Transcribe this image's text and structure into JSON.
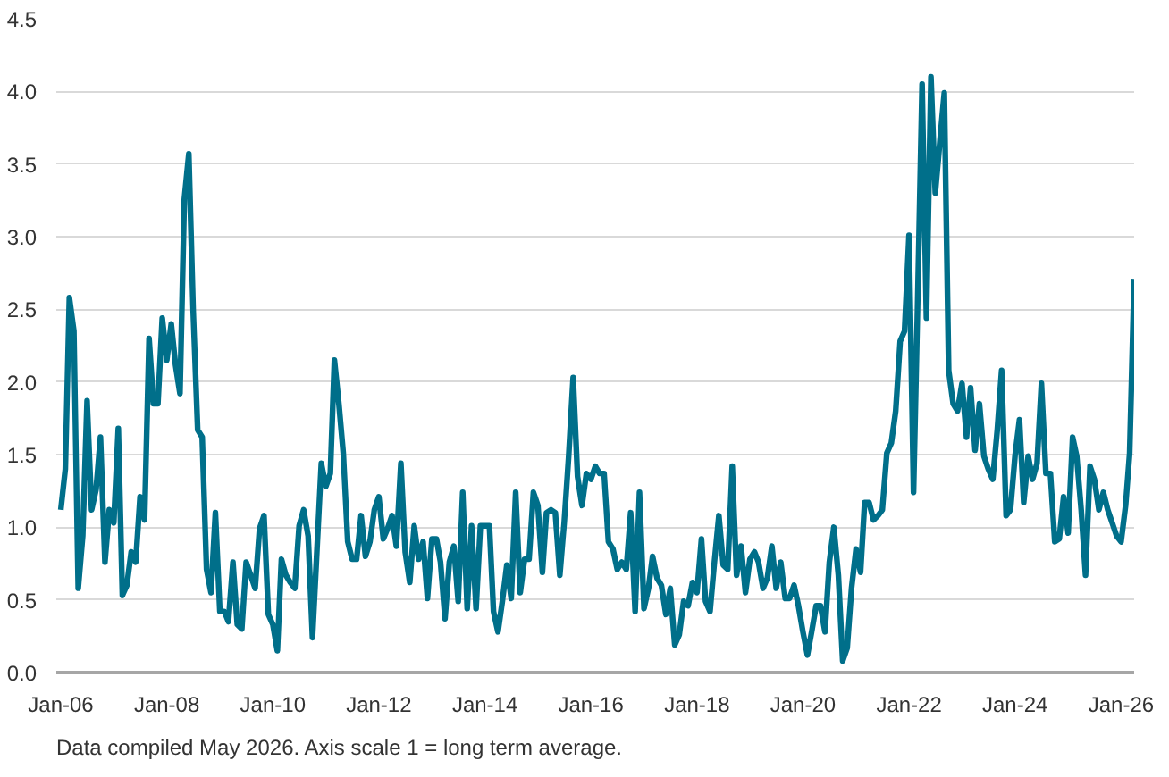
{
  "chart_data": {
    "type": "line",
    "x": [
      "2006-01",
      "2006-02",
      "2006-03",
      "2006-04",
      "2006-05",
      "2006-06",
      "2006-07",
      "2006-08",
      "2006-09",
      "2006-10",
      "2006-11",
      "2006-12",
      "2007-01",
      "2007-02",
      "2007-03",
      "2007-04",
      "2007-05",
      "2007-06",
      "2007-07",
      "2007-08",
      "2007-09",
      "2007-10",
      "2007-11",
      "2007-12",
      "2008-01",
      "2008-02",
      "2008-03",
      "2008-04",
      "2008-05",
      "2008-06",
      "2008-07",
      "2008-08",
      "2008-09",
      "2008-10",
      "2008-11",
      "2008-12",
      "2009-01",
      "2009-02",
      "2009-03",
      "2009-04",
      "2009-05",
      "2009-06",
      "2009-07",
      "2009-08",
      "2009-09",
      "2009-10",
      "2009-11",
      "2009-12",
      "2010-01",
      "2010-02",
      "2010-03",
      "2010-04",
      "2010-05",
      "2010-06",
      "2010-07",
      "2010-08",
      "2010-09",
      "2010-10",
      "2010-11",
      "2010-12",
      "2011-01",
      "2011-02",
      "2011-03",
      "2011-04",
      "2011-05",
      "2011-06",
      "2011-07",
      "2011-08",
      "2011-09",
      "2011-10",
      "2011-11",
      "2011-12",
      "2012-01",
      "2012-02",
      "2012-03",
      "2012-04",
      "2012-05",
      "2012-06",
      "2012-07",
      "2012-08",
      "2012-09",
      "2012-10",
      "2012-11",
      "2012-12",
      "2013-01",
      "2013-02",
      "2013-03",
      "2013-04",
      "2013-05",
      "2013-06",
      "2013-07",
      "2013-08",
      "2013-09",
      "2013-10",
      "2013-11",
      "2013-12",
      "2014-01",
      "2014-02",
      "2014-03",
      "2014-04",
      "2014-05",
      "2014-06",
      "2014-07",
      "2014-08",
      "2014-09",
      "2014-10",
      "2014-11",
      "2014-12",
      "2015-01",
      "2015-02",
      "2015-03",
      "2015-04",
      "2015-05",
      "2015-06",
      "2015-07",
      "2015-08",
      "2015-09",
      "2015-10",
      "2015-11",
      "2015-12",
      "2016-01",
      "2016-02",
      "2016-03",
      "2016-04",
      "2016-05",
      "2016-06",
      "2016-07",
      "2016-08",
      "2016-09",
      "2016-10",
      "2016-11",
      "2016-12",
      "2017-01",
      "2017-02",
      "2017-03",
      "2017-04",
      "2017-05",
      "2017-06",
      "2017-07",
      "2017-08",
      "2017-09",
      "2017-10",
      "2017-11",
      "2017-12",
      "2018-01",
      "2018-02",
      "2018-03",
      "2018-04",
      "2018-05",
      "2018-06",
      "2018-07",
      "2018-08",
      "2018-09",
      "2018-10",
      "2018-11",
      "2018-12",
      "2019-01",
      "2019-02",
      "2019-03",
      "2019-04",
      "2019-05",
      "2019-06",
      "2019-07",
      "2019-08",
      "2019-09",
      "2019-10",
      "2019-11",
      "2019-12",
      "2020-01",
      "2020-02",
      "2020-03",
      "2020-04",
      "2020-05",
      "2020-06",
      "2020-07",
      "2020-08",
      "2020-09",
      "2020-10",
      "2020-11",
      "2020-12",
      "2021-01",
      "2021-02",
      "2021-03",
      "2021-04",
      "2021-05",
      "2021-06",
      "2021-07",
      "2021-08",
      "2021-09",
      "2021-10",
      "2021-11",
      "2021-12",
      "2022-01",
      "2022-02",
      "2022-03",
      "2022-04",
      "2022-05",
      "2022-06",
      "2022-07",
      "2022-08",
      "2022-09",
      "2022-10",
      "2022-11",
      "2022-12",
      "2023-01",
      "2023-02",
      "2023-03",
      "2023-04",
      "2023-05",
      "2023-06",
      "2023-07",
      "2023-08",
      "2023-09",
      "2023-10",
      "2023-11",
      "2023-12",
      "2024-01",
      "2024-02",
      "2024-03",
      "2024-04",
      "2024-05",
      "2024-06",
      "2024-07",
      "2024-08",
      "2024-09",
      "2024-10",
      "2024-11",
      "2024-12",
      "2025-01",
      "2025-02",
      "2025-03",
      "2025-04",
      "2025-05",
      "2025-06",
      "2025-07",
      "2025-08",
      "2025-09",
      "2025-10",
      "2025-11",
      "2025-12",
      "2026-01",
      "2026-02",
      "2026-03",
      "2026-04"
    ],
    "series": [
      {
        "color": "#006f8a",
        "values": [
          1.12,
          1.4,
          2.58,
          2.35,
          0.58,
          0.94,
          1.87,
          1.12,
          1.26,
          1.62,
          0.76,
          1.12,
          1.03,
          1.68,
          0.53,
          0.6,
          0.83,
          0.76,
          1.21,
          1.05,
          2.3,
          1.85,
          1.85,
          2.44,
          2.15,
          2.4,
          2.12,
          1.92,
          3.26,
          3.57,
          2.49,
          1.67,
          1.62,
          0.71,
          0.55,
          1.1,
          0.42,
          0.42,
          0.35,
          0.76,
          0.33,
          0.3,
          0.76,
          0.67,
          0.58,
          0.99,
          1.08,
          0.4,
          0.33,
          0.15,
          0.78,
          0.67,
          0.62,
          0.58,
          1.01,
          1.12,
          0.94,
          0.24,
          0.85,
          1.44,
          1.28,
          1.37,
          2.15,
          1.85,
          1.51,
          0.9,
          0.78,
          0.78,
          1.08,
          0.8,
          0.9,
          1.12,
          1.21,
          0.92,
          0.99,
          1.08,
          0.87,
          1.44,
          0.83,
          0.62,
          1.01,
          0.78,
          0.9,
          0.51,
          0.92,
          0.92,
          0.76,
          0.37,
          0.76,
          0.87,
          0.49,
          1.24,
          0.44,
          1.01,
          0.44,
          1.01,
          1.01,
          1.01,
          0.42,
          0.28,
          0.49,
          0.74,
          0.51,
          1.24,
          0.55,
          0.78,
          0.78,
          1.24,
          1.15,
          0.69,
          1.1,
          1.12,
          1.1,
          0.67,
          1.03,
          1.49,
          2.03,
          1.35,
          1.15,
          1.37,
          1.33,
          1.42,
          1.37,
          1.37,
          0.9,
          0.85,
          0.71,
          0.76,
          0.71,
          1.1,
          0.42,
          1.24,
          0.44,
          0.58,
          0.8,
          0.65,
          0.6,
          0.4,
          0.58,
          0.19,
          0.26,
          0.49,
          0.46,
          0.62,
          0.55,
          0.92,
          0.49,
          0.42,
          0.76,
          1.08,
          0.74,
          0.71,
          1.42,
          0.67,
          0.87,
          0.55,
          0.78,
          0.83,
          0.76,
          0.58,
          0.65,
          0.87,
          0.58,
          0.76,
          0.51,
          0.51,
          0.6,
          0.46,
          0.28,
          0.12,
          0.28,
          0.46,
          0.46,
          0.28,
          0.76,
          1.0,
          0.67,
          0.08,
          0.17,
          0.58,
          0.85,
          0.69,
          1.17,
          1.17,
          1.05,
          1.08,
          1.12,
          1.51,
          1.58,
          1.8,
          2.28,
          2.35,
          3.01,
          1.24,
          2.53,
          4.05,
          2.44,
          4.1,
          3.3,
          3.65,
          3.99,
          2.08,
          1.85,
          1.8,
          1.99,
          1.62,
          1.96,
          1.53,
          1.85,
          1.49,
          1.4,
          1.33,
          1.67,
          2.08,
          1.08,
          1.12,
          1.49,
          1.74,
          1.17,
          1.49,
          1.33,
          1.44,
          1.99,
          1.37,
          1.37,
          0.9,
          0.92,
          1.21,
          0.96,
          1.62,
          1.49,
          1.12,
          0.67,
          1.42,
          1.33,
          1.12,
          1.24,
          1.12,
          1.03,
          0.94,
          0.9,
          1.15,
          1.51,
          2.71
        ]
      }
    ],
    "xlim": [
      "2005-12",
      "2026-04"
    ],
    "xticks": [
      {
        "value": "2006-01",
        "label": "Jan-06"
      },
      {
        "value": "2008-01",
        "label": "Jan-08"
      },
      {
        "value": "2010-01",
        "label": "Jan-10"
      },
      {
        "value": "2012-01",
        "label": "Jan-12"
      },
      {
        "value": "2014-01",
        "label": "Jan-14"
      },
      {
        "value": "2016-01",
        "label": "Jan-16"
      },
      {
        "value": "2018-01",
        "label": "Jan-18"
      },
      {
        "value": "2020-01",
        "label": "Jan-20"
      },
      {
        "value": "2022-01",
        "label": "Jan-22"
      },
      {
        "value": "2024-01",
        "label": "Jan-24"
      },
      {
        "value": "2026-01",
        "label": "Jan-26"
      }
    ],
    "ylim": [
      0,
      4.5
    ],
    "yticks": [
      {
        "value": 0,
        "label": "0.0"
      },
      {
        "value": 0.5,
        "label": "0.5"
      },
      {
        "value": 1,
        "label": "1.0"
      },
      {
        "value": 1.5,
        "label": "1.5"
      },
      {
        "value": 2,
        "label": "2.0"
      },
      {
        "value": 2.5,
        "label": "2.5"
      },
      {
        "value": 3,
        "label": "3.0"
      },
      {
        "value": 3.5,
        "label": "3.5"
      },
      {
        "value": 4,
        "label": "4.0"
      },
      {
        "value": 4.5,
        "label": "4.5"
      }
    ],
    "grid": "y",
    "line_style": "solid",
    "annotations": [
      "Data compiled May 2026. Axis scale 1 = long term average."
    ]
  }
}
